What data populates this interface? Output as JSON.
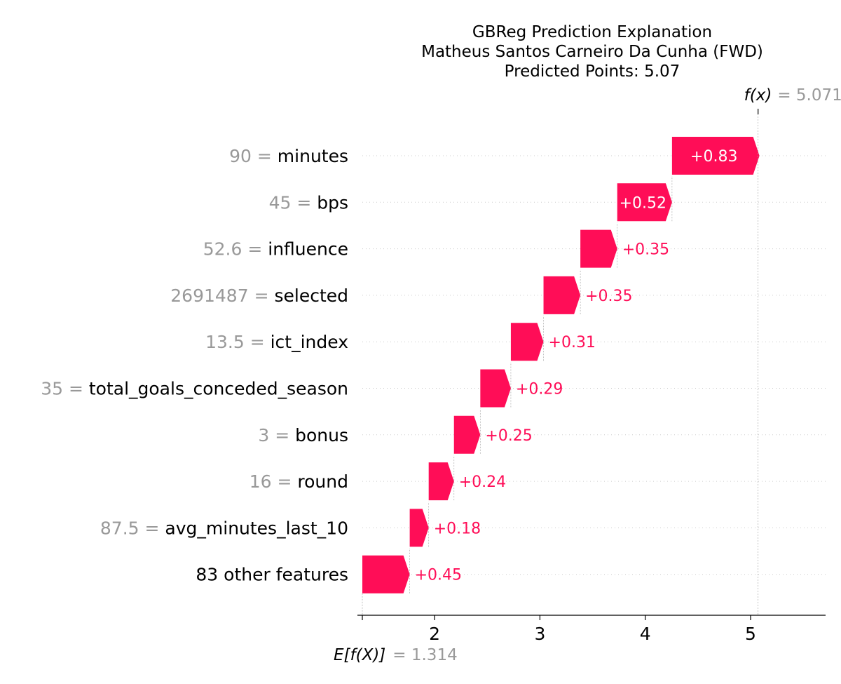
{
  "chart_data": {
    "type": "waterfall",
    "title_lines": [
      "GBReg Prediction Explanation",
      "Matheus Santos Carneiro Da Cunha (FWD)",
      "Predicted Points: 5.07"
    ],
    "base_value": 1.314,
    "base_label": "E[f(X)]",
    "base_value_text": "= 1.314",
    "output_value": 5.071,
    "output_label": "f(x)",
    "output_value_text": "= 5.071",
    "xlim": [
      1.314,
      5.7
    ],
    "xticks": [
      2,
      3,
      4,
      5
    ],
    "bars": [
      {
        "feature_value": "90",
        "feature": "minutes",
        "value": 0.83,
        "label": "+0.83"
      },
      {
        "feature_value": "45",
        "feature": "bps",
        "value": 0.52,
        "label": "+0.52"
      },
      {
        "feature_value": "52.6",
        "feature": "influence",
        "value": 0.35,
        "label": "+0.35"
      },
      {
        "feature_value": "2691487",
        "feature": "selected",
        "value": 0.35,
        "label": "+0.35"
      },
      {
        "feature_value": "13.5",
        "feature": "ict_index",
        "value": 0.31,
        "label": "+0.31"
      },
      {
        "feature_value": "35",
        "feature": "total_goals_conceded_season",
        "value": 0.29,
        "label": "+0.29"
      },
      {
        "feature_value": "3",
        "feature": "bonus",
        "value": 0.25,
        "label": "+0.25"
      },
      {
        "feature_value": "16",
        "feature": "round",
        "value": 0.24,
        "label": "+0.24"
      },
      {
        "feature_value": "87.5",
        "feature": "avg_minutes_last_10",
        "value": 0.18,
        "label": "+0.18"
      },
      {
        "feature_value": "",
        "feature": "83 other features",
        "value": 0.45,
        "label": "+0.45"
      }
    ],
    "colors": {
      "positive": "#ff0d57",
      "value_text": "#999999",
      "label_text": "#000000"
    }
  }
}
